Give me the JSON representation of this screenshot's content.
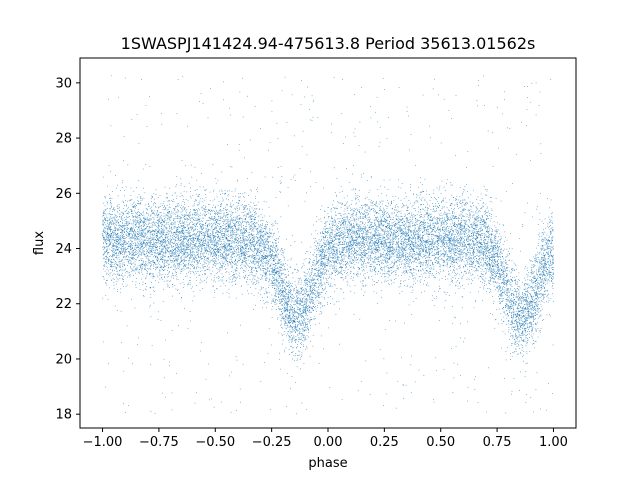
{
  "chart_data": {
    "type": "scatter",
    "title": "1SWASPJ141424.94-475613.8 Period 35613.01562s",
    "xlabel": "phase",
    "ylabel": "flux",
    "xlim": [
      -1.1,
      1.1
    ],
    "ylim": [
      17.5,
      30.9
    ],
    "xticks": [
      -1.0,
      -0.75,
      -0.5,
      -0.25,
      0.0,
      0.25,
      0.5,
      0.75,
      1.0
    ],
    "xtick_labels": [
      "−1.00",
      "−0.75",
      "−0.50",
      "−0.25",
      "0.00",
      "0.25",
      "0.50",
      "0.75",
      "1.00"
    ],
    "yticks": [
      18,
      20,
      22,
      24,
      26,
      28,
      30
    ],
    "ytick_labels": [
      "18",
      "20",
      "22",
      "24",
      "26",
      "28",
      "30"
    ],
    "grid": false,
    "marker_color": "#1f77b4",
    "series": [
      {
        "x_range": [
          -1.0,
          1.0
        ],
        "baseline_flux": 24.3,
        "scatter_sd": 0.75,
        "eclipses": [
          {
            "phase": -0.14,
            "depth": 2.8,
            "width": 0.07
          },
          {
            "phase": 0.86,
            "depth": 2.8,
            "width": 0.07
          }
        ],
        "y_span": [
          18.0,
          30.3
        ]
      }
    ]
  }
}
